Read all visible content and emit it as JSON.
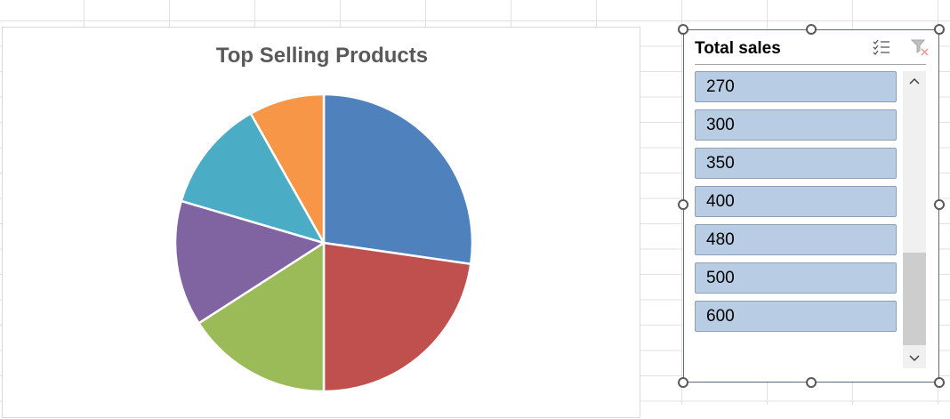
{
  "chart_data": {
    "type": "pie",
    "title": "Top Selling Products",
    "values": [
      600,
      500,
      350,
      300,
      270,
      180
    ],
    "colors": [
      "#4f81bd",
      "#c0504d",
      "#9bbb59",
      "#8064a2",
      "#4bacc6",
      "#f79646"
    ]
  },
  "slicer": {
    "title": "Total sales",
    "items": [
      "270",
      "300",
      "350",
      "400",
      "480",
      "500",
      "600"
    ],
    "item_color": "#b8cce4",
    "multi_select_icon": "multi-select-icon",
    "clear_filter_icon": "clear-filter-icon"
  }
}
